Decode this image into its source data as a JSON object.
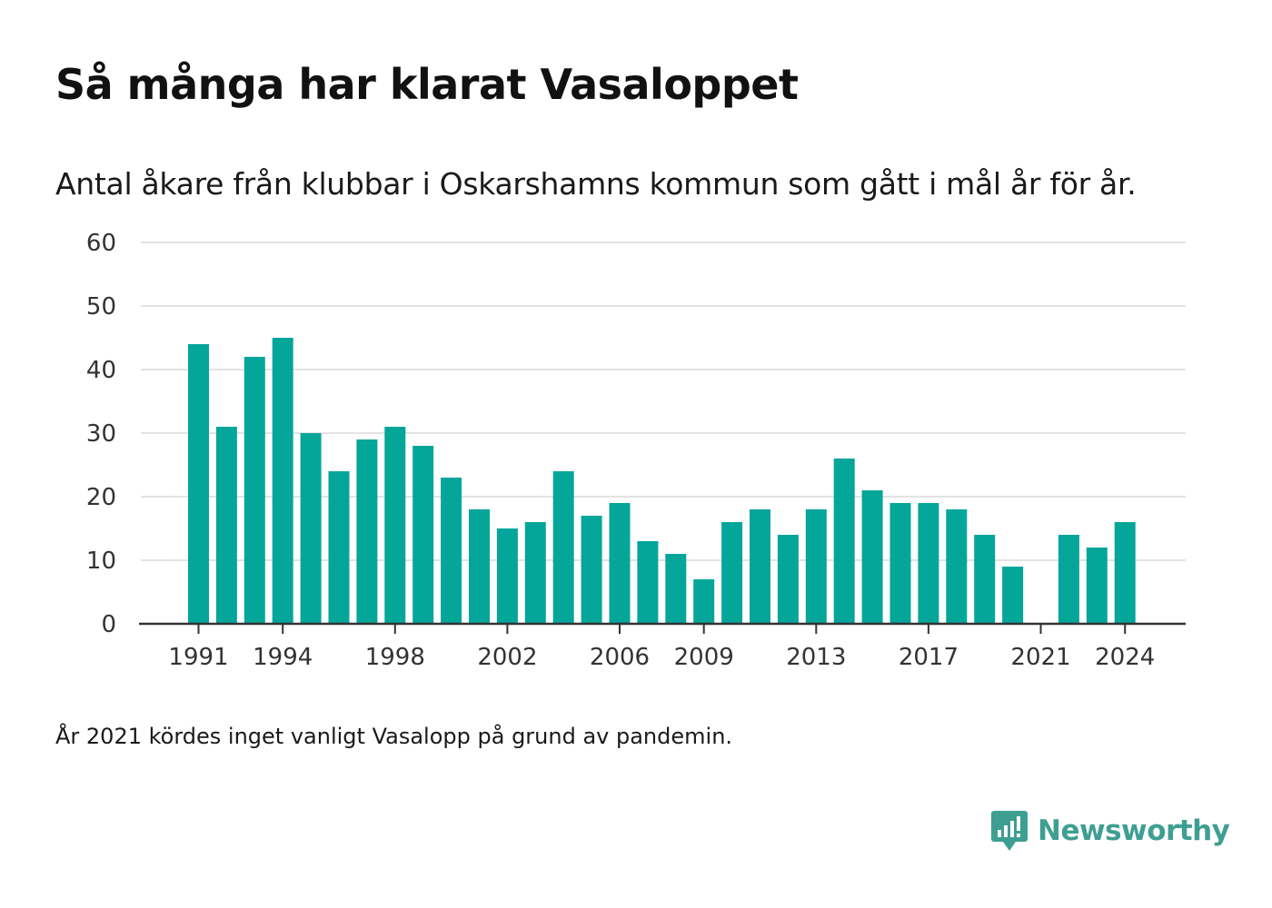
{
  "header": {
    "title": "Så många har klarat Vasaloppet",
    "subtitle": "Antal åkare från klubbar i Oskarshamns kommun som gått i mål år för år."
  },
  "footer": {
    "note": "År 2021 kördes inget vanligt Vasalopp på grund av pandemin.",
    "brand": "Newsworthy"
  },
  "colors": {
    "bar": "#05a69a",
    "grid": "#e3e3e3",
    "axis": "#333333",
    "brand": "#3f9e92"
  },
  "chart_data": {
    "type": "bar",
    "x": [
      1991,
      1992,
      1993,
      1994,
      1995,
      1996,
      1997,
      1998,
      1999,
      2000,
      2001,
      2002,
      2003,
      2004,
      2005,
      2006,
      2007,
      2008,
      2009,
      2010,
      2011,
      2012,
      2013,
      2014,
      2015,
      2016,
      2017,
      2018,
      2019,
      2020,
      2021,
      2022,
      2023,
      2024
    ],
    "values": [
      44,
      31,
      42,
      45,
      30,
      24,
      29,
      31,
      28,
      23,
      18,
      15,
      16,
      24,
      17,
      19,
      13,
      11,
      7,
      16,
      18,
      14,
      18,
      26,
      21,
      19,
      19,
      18,
      14,
      9,
      null,
      14,
      12,
      16
    ],
    "xticks": [
      1991,
      1994,
      1998,
      2002,
      2006,
      2009,
      2013,
      2017,
      2021,
      2024
    ],
    "yticks": [
      0,
      10,
      20,
      30,
      40,
      50,
      60
    ],
    "ylim": [
      0,
      60
    ],
    "grid": true,
    "title": "Så många har klarat Vasaloppet",
    "xlabel": "",
    "ylabel": ""
  }
}
